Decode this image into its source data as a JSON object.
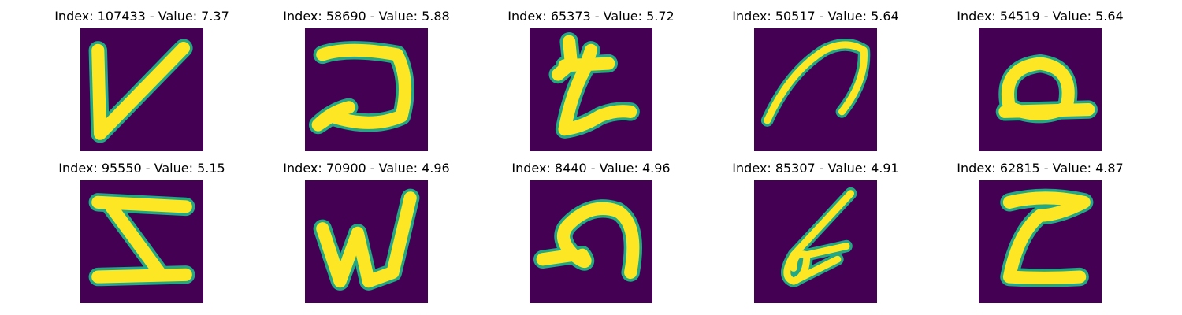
{
  "colors": {
    "background": "#440154",
    "stroke_core": "#FDE725",
    "stroke_edge": "#22A884"
  },
  "panels": [
    {
      "title": "Index: 107433 - Value: 7.37",
      "glyph": "V"
    },
    {
      "title": "Index: 58690 - Value: 5.88",
      "glyph": "rotated-D"
    },
    {
      "title": "Index: 65373 - Value: 5.72",
      "glyph": "t-like"
    },
    {
      "title": "Index: 50517 - Value: 5.64",
      "glyph": "arc"
    },
    {
      "title": "Index: 54519 - Value: 5.64",
      "glyph": "Q-like"
    },
    {
      "title": "Index: 95550 - Value: 5.15",
      "glyph": "Z-like"
    },
    {
      "title": "Index: 70900 - Value: 4.96",
      "glyph": "W"
    },
    {
      "title": "Index: 8440 - Value: 4.96",
      "glyph": "loop-arc"
    },
    {
      "title": "Index: 85307 - Value: 4.91",
      "glyph": "b-like"
    },
    {
      "title": "Index: 62815 - Value: 4.87",
      "glyph": "Z-like"
    }
  ]
}
